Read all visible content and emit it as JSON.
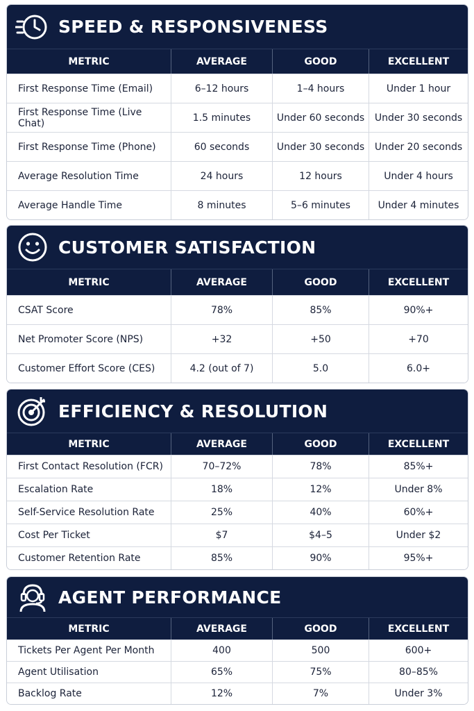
{
  "sections": [
    {
      "title": "SPEED & RESPONSIVENESS",
      "icon": "clock-speed-icon",
      "headers": [
        "METRIC",
        "AVERAGE",
        "GOOD",
        "EXCELLENT"
      ],
      "rows": [
        [
          "First Response Time (Email)",
          "6–12 hours",
          "1–4 hours",
          "Under 1 hour"
        ],
        [
          "First Response Time (Live Chat)",
          "1.5 minutes",
          "Under 60 seconds",
          "Under 30 seconds"
        ],
        [
          "First Response Time (Phone)",
          "60 seconds",
          "Under 30 seconds",
          "Under 20 seconds"
        ],
        [
          "Average Resolution Time",
          "24 hours",
          "12 hours",
          "Under 4 hours"
        ],
        [
          "Average Handle Time",
          "8 minutes",
          "5–6 minutes",
          "Under 4 minutes"
        ]
      ]
    },
    {
      "title": "CUSTOMER SATISFACTION",
      "icon": "smiley-face-icon",
      "headers": [
        "METRIC",
        "AVERAGE",
        "GOOD",
        "EXCELLENT"
      ],
      "rows": [
        [
          "CSAT Score",
          "78%",
          "85%",
          "90%+"
        ],
        [
          "Net Promoter Score (NPS)",
          "+32",
          "+50",
          "+70"
        ],
        [
          "Customer Effort Score (CES)",
          "4.2 (out of 7)",
          "5.0",
          "6.0+"
        ]
      ]
    },
    {
      "title": "EFFICIENCY & RESOLUTION",
      "icon": "target-icon",
      "headers": [
        "METRIC",
        "AVERAGE",
        "GOOD",
        "EXCELLENT"
      ],
      "rows": [
        [
          "First Contact Resolution (FCR)",
          "70–72%",
          "78%",
          "85%+"
        ],
        [
          "Escalation Rate",
          "18%",
          "12%",
          "Under 8%"
        ],
        [
          "Self-Service Resolution Rate",
          "25%",
          "40%",
          "60%+"
        ],
        [
          "Cost Per Ticket",
          "$7",
          "$4–5",
          "Under $2"
        ],
        [
          "Customer Retention Rate",
          "85%",
          "90%",
          "95%+"
        ]
      ]
    },
    {
      "title": "AGENT PERFORMANCE",
      "icon": "headset-agent-icon",
      "headers": [
        "METRIC",
        "AVERAGE",
        "GOOD",
        "EXCELLENT"
      ],
      "rows": [
        [
          "Tickets Per Agent Per Month",
          "400",
          "500",
          "600+"
        ],
        [
          "Agent Utilisation",
          "65%",
          "75%",
          "80–85%"
        ],
        [
          "Backlog Rate",
          "12%",
          "7%",
          "Under 3%"
        ]
      ]
    }
  ],
  "colors": {
    "header_bg": "#0f1d3f",
    "text": "#1b2238",
    "border": "#d5d9e1"
  }
}
